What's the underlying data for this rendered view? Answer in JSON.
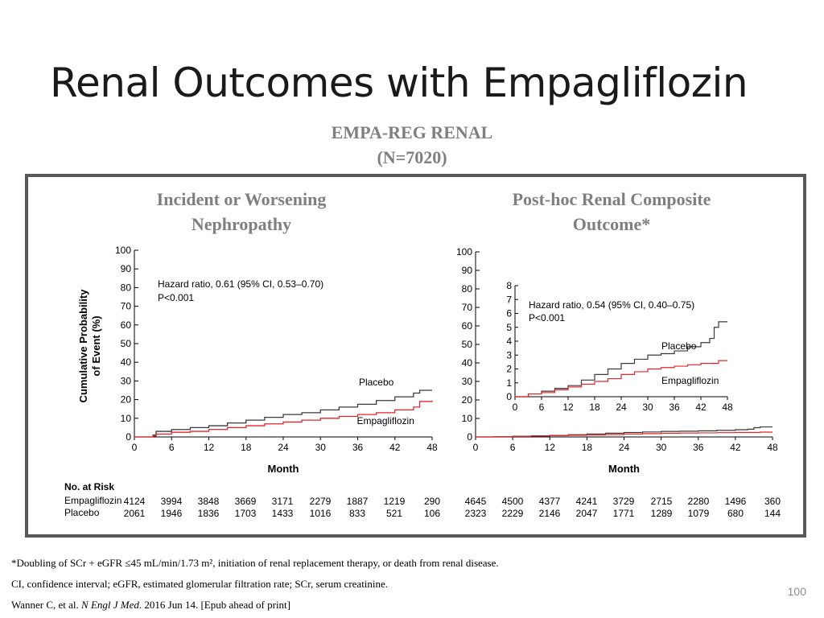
{
  "slide": {
    "title": "Renal Outcomes with Empagliflozin",
    "subtitle_line1": "EMPA-REG RENAL",
    "subtitle_line2": "(N=7020)",
    "page_number": "100"
  },
  "footnotes": {
    "line1": "*Doubling of SCr + eGFR ≤45 mL/min/1.73 m², initiation of renal replacement therapy, or death from renal disease.",
    "line2": "CI, confidence interval; eGFR, estimated glomerular filtration rate; SCr, serum creatinine.",
    "line3_prefix": "Wanner C, et al. ",
    "line3_journal": "N Engl J Med",
    "line3_suffix": ". 2016 Jun 14. [Epub ahead of print]"
  },
  "risk_table": {
    "title": "No. at Risk",
    "row_labels": [
      "Empagliflozin",
      "Placebo"
    ],
    "left": {
      "empagliflozin": [
        "4124",
        "3994",
        "3848",
        "3669",
        "3171",
        "2279",
        "1887",
        "1219",
        "290"
      ],
      "placebo": [
        "2061",
        "1946",
        "1836",
        "1703",
        "1433",
        "1016",
        "833",
        "521",
        "106"
      ]
    },
    "right": {
      "empagliflozin": [
        "4645",
        "4500",
        "4377",
        "4241",
        "3729",
        "2715",
        "2280",
        "1496",
        "360"
      ],
      "placebo": [
        "2323",
        "2229",
        "2146",
        "2047",
        "1771",
        "1289",
        "1079",
        "680",
        "144"
      ]
    }
  },
  "colors": {
    "placebo": "#3a3a3a",
    "empagliflozin": "#e8232a",
    "panel_title": "#7f7f7f"
  },
  "chart_data": [
    {
      "type": "line",
      "title": "Incident or Worsening Nephropathy",
      "xlabel": "Month",
      "ylabel": "Cumulative Probability of Event (%)",
      "xlim": [
        0,
        48
      ],
      "ylim": [
        0,
        100
      ],
      "xticks": [
        0,
        6,
        12,
        18,
        24,
        30,
        36,
        42,
        48
      ],
      "yticks": [
        0,
        10,
        20,
        30,
        40,
        50,
        60,
        70,
        80,
        90,
        100
      ],
      "annotation_line1": "Hazard ratio, 0.61 (95% CI, 0.53–0.70)",
      "annotation_line2": "P<0.001",
      "series": [
        {
          "name": "Placebo",
          "x": [
            0,
            3,
            3.5,
            6,
            9,
            12,
            15,
            18,
            21,
            24,
            27,
            30,
            33,
            36,
            39,
            42,
            45,
            46,
            48
          ],
          "y": [
            0,
            1,
            3,
            4,
            5,
            6,
            7.5,
            9,
            10.5,
            12,
            13,
            14.5,
            16,
            17.5,
            19.5,
            21.5,
            23.5,
            25,
            25
          ]
        },
        {
          "name": "Empagliflozin",
          "x": [
            0,
            3,
            3.5,
            6,
            9,
            12,
            15,
            18,
            21,
            24,
            27,
            30,
            33,
            36,
            39,
            42,
            45,
            46,
            48
          ],
          "y": [
            0,
            0.5,
            1.5,
            2.5,
            3,
            4,
            5,
            6,
            7,
            8,
            9,
            10,
            11,
            12,
            13,
            14.5,
            16,
            19,
            19.5
          ]
        }
      ]
    },
    {
      "type": "line",
      "title": "Post-hoc Renal Composite Outcome*",
      "xlabel": "Month",
      "xlim": [
        0,
        48
      ],
      "ylim": [
        0,
        100
      ],
      "xticks": [
        0,
        6,
        12,
        18,
        24,
        30,
        36,
        42,
        48
      ],
      "yticks": [
        0,
        10,
        20,
        30,
        40,
        50,
        60,
        70,
        80,
        90,
        100
      ],
      "inset": {
        "ylim": [
          0,
          8
        ],
        "yticks": [
          0,
          1,
          2,
          3,
          4,
          5,
          6,
          7,
          8
        ],
        "xticks": [
          0,
          6,
          12,
          18,
          24,
          30,
          36,
          42,
          48
        ]
      },
      "annotation_line1": "Hazard ratio, 0.54 (95% CI, 0.40–0.75)",
      "annotation_line2": "P<0.001",
      "series": [
        {
          "name": "Placebo",
          "x": [
            0,
            3,
            6,
            9,
            12,
            15,
            18,
            21,
            24,
            27,
            30,
            33,
            36,
            39,
            42,
            44,
            45,
            46,
            48
          ],
          "y": [
            0,
            0.2,
            0.4,
            0.6,
            0.8,
            1.2,
            1.6,
            2.0,
            2.4,
            2.7,
            3.0,
            3.1,
            3.3,
            3.6,
            3.9,
            4.2,
            5.0,
            5.4,
            5.4
          ]
        },
        {
          "name": "Empagliflozin",
          "x": [
            0,
            3,
            6,
            9,
            12,
            15,
            18,
            21,
            24,
            27,
            30,
            33,
            36,
            39,
            42,
            44,
            45,
            46,
            48
          ],
          "y": [
            0,
            0.2,
            0.3,
            0.5,
            0.7,
            0.9,
            1.1,
            1.3,
            1.6,
            1.8,
            2.0,
            2.1,
            2.2,
            2.3,
            2.4,
            2.4,
            2.4,
            2.6,
            2.6
          ]
        }
      ]
    }
  ]
}
